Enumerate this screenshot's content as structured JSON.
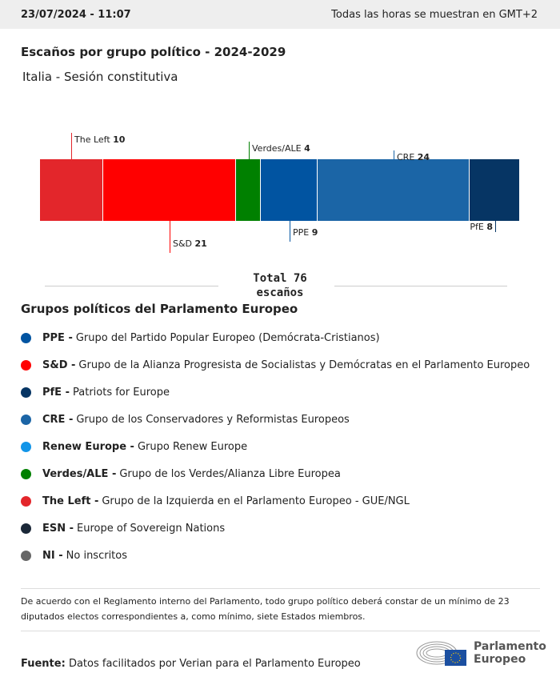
{
  "header": {
    "datetime": "23/07/2024 - 11:07",
    "timezone_note": "Todas las horas se muestran en GMT+2"
  },
  "title": "Escaños por grupo político - 2024-2029",
  "subtitle": "Italia - Sesión constitutiva",
  "chart_data": {
    "type": "bar",
    "orientation": "stacked-horizontal",
    "categories": [
      "The Left",
      "S&D",
      "Verdes/ALE",
      "PPE",
      "CRE",
      "PfE"
    ],
    "values": [
      10,
      21,
      4,
      9,
      24,
      8
    ],
    "colors": [
      "#e3262b",
      "#ff0000",
      "#008000",
      "#0154a1",
      "#1b65a6",
      "#063564"
    ],
    "label_positions": [
      "top",
      "bottom",
      "top",
      "bottom",
      "top",
      "bottom"
    ],
    "total_label": "Total 76",
    "total_unit": "escaños"
  },
  "legend": {
    "title": "Grupos políticos del Parlamento Europeo",
    "items": [
      {
        "abbr": "PPE -",
        "name": "Grupo del Partido Popular Europeo (Demócrata-Cristianos)",
        "color": "#0154a1"
      },
      {
        "abbr": "S&D -",
        "name": "Grupo de la Alianza Progresista de Socialistas y Demócratas en el Parlamento Europeo",
        "color": "#ff0000"
      },
      {
        "abbr": "PfE -",
        "name": "Patriots for Europe",
        "color": "#063564"
      },
      {
        "abbr": "CRE -",
        "name": "Grupo de los Conservadores y Reformistas Europeos",
        "color": "#1b65a6"
      },
      {
        "abbr": "Renew Europe -",
        "name": "Grupo Renew Europe",
        "color": "#1295e8"
      },
      {
        "abbr": "Verdes/ALE -",
        "name": "Grupo de los Verdes/Alianza Libre Europea",
        "color": "#008000"
      },
      {
        "abbr": "The Left -",
        "name": "Grupo de la Izquierda en el Parlamento Europeo - GUE/NGL",
        "color": "#e3262b"
      },
      {
        "abbr": "ESN -",
        "name": "Europe of Sovereign Nations",
        "color": "#1b2838"
      },
      {
        "abbr": "NI -",
        "name": "No inscritos",
        "color": "#666666"
      }
    ]
  },
  "note": "De acuerdo con el Reglamento interno del Parlamento, todo grupo político deberá constar de un mínimo de 23 diputados electos correspondientes a, como mínimo, siete Estados miembros.",
  "source": {
    "label": "Fuente:",
    "text": "Datos facilitados por Verian para el Parlamento Europeo"
  },
  "logo": {
    "line1": "Parlamento",
    "line2": "Europeo"
  }
}
